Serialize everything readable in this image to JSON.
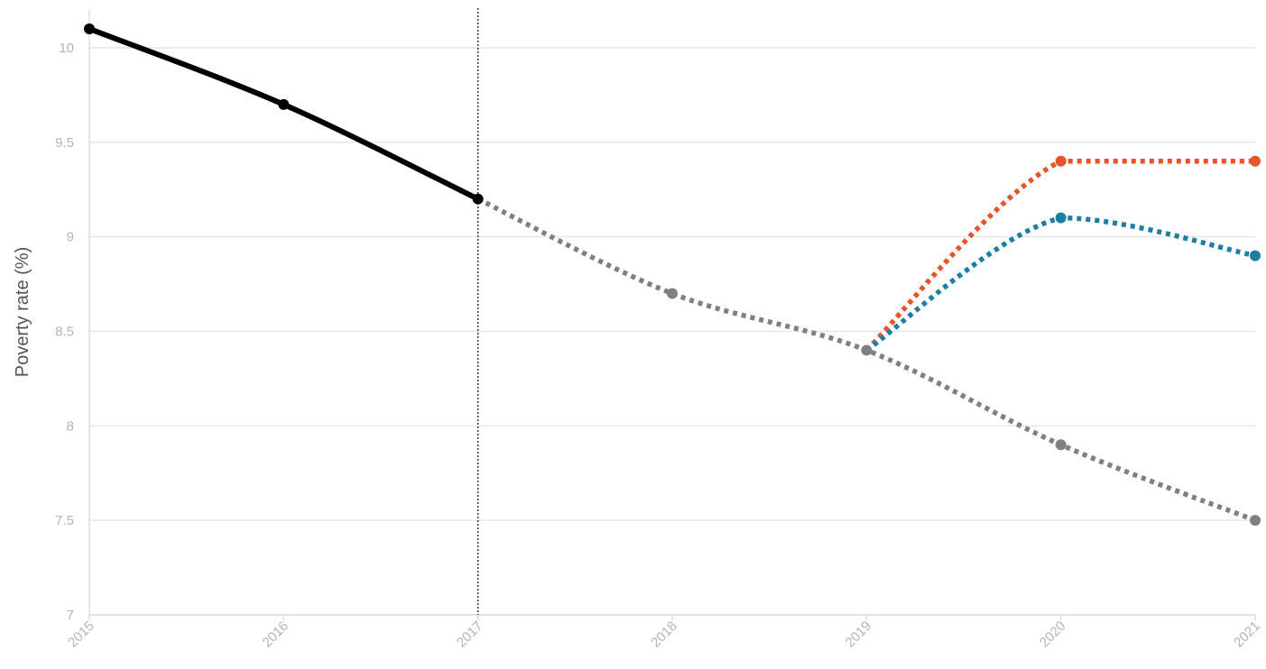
{
  "chart_data": {
    "type": "line",
    "title": "",
    "xlabel": "",
    "ylabel": "Poverty rate (%)",
    "x": [
      2015,
      2016,
      2017,
      2018,
      2019,
      2020,
      2021
    ],
    "xlim": [
      2015,
      2021
    ],
    "ylim": [
      7,
      10.2
    ],
    "yticks": [
      7,
      7.5,
      8,
      8.5,
      9,
      9.5,
      10
    ],
    "xtick_labels": [
      "2015",
      "2016",
      "2017",
      "2018",
      "2019",
      "2020",
      "2021"
    ],
    "ytick_labels": [
      "7",
      "7.5",
      "8",
      "8.5",
      "9",
      "9.5",
      "10"
    ],
    "grid": true,
    "vertical_marker_x": 2017,
    "series": [
      {
        "color": "#000000",
        "style": "solid",
        "points": [
          [
            2015,
            10.1
          ],
          [
            2016,
            9.7
          ],
          [
            2017,
            9.2
          ]
        ]
      },
      {
        "color": "#808080",
        "style": "dotted",
        "points": [
          [
            2017,
            9.2
          ],
          [
            2018,
            8.7
          ],
          [
            2019,
            8.4
          ],
          [
            2020,
            7.9
          ],
          [
            2021,
            7.5
          ]
        ]
      },
      {
        "color": "#e8532a",
        "style": "dotted",
        "points": [
          [
            2019,
            8.4
          ],
          [
            2020,
            9.4
          ],
          [
            2021,
            9.4
          ]
        ]
      },
      {
        "color": "#1a7fa3",
        "style": "dotted",
        "points": [
          [
            2019,
            8.4
          ],
          [
            2020,
            9.1
          ],
          [
            2021,
            8.9
          ]
        ]
      }
    ]
  }
}
